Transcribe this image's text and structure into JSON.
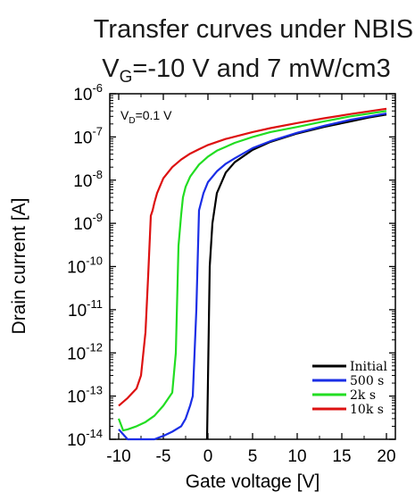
{
  "chart_data": {
    "type": "line",
    "title": {
      "line1": "Transfer curves under NBIS,",
      "line2_parts": [
        "V",
        "G",
        "=-10 V and 7 mW/cm3"
      ]
    },
    "xlabel": "Gate voltage [V]",
    "ylabel": "Drain current [A]",
    "xlim": [
      -11,
      21
    ],
    "ylim_log10": [
      -14,
      -6
    ],
    "y_scale": "log",
    "x_ticks": [
      -10,
      -5,
      0,
      5,
      10,
      15,
      20
    ],
    "y_tick_exponents": [
      -14,
      -13,
      -12,
      -11,
      -10,
      -9,
      -8,
      -7,
      -6
    ],
    "y_tick_base": "10",
    "annotation": {
      "parts": [
        "V",
        "D",
        "=0.1 V"
      ],
      "placement": "top-left"
    },
    "legend_placement": "bottom-right",
    "series": [
      {
        "name": "Initial",
        "color": "#000000",
        "x": [
          -0.1,
          0.05,
          0.2,
          0.5,
          1,
          2,
          3,
          5,
          7,
          10,
          13,
          16,
          18,
          20
        ],
        "y": [
          1e-14,
          1e-12,
          1e-10,
          1e-09,
          5e-09,
          1.5e-08,
          2.6e-08,
          5e-08,
          7.7e-08,
          1.2e-07,
          1.7e-07,
          2.3e-07,
          2.8e-07,
          3.3e-07
        ]
      },
      {
        "name": "500 s",
        "color": "#1a2ee6",
        "x": [
          -10,
          -9,
          -8,
          -7,
          -6,
          -5,
          -4,
          -3,
          -2.5,
          -2,
          -1.7,
          -1.3,
          -1,
          -0.5,
          0,
          1,
          2,
          3,
          5,
          7,
          10,
          13,
          16,
          20
        ],
        "y": [
          1.7e-14,
          8e-15,
          8e-15,
          9e-15,
          1e-14,
          1.2e-14,
          1.5e-14,
          2e-14,
          3e-14,
          6e-14,
          1e-13,
          1e-11,
          2e-09,
          5e-09,
          9e-09,
          1.6e-08,
          2.4e-08,
          3.2e-08,
          5.5e-08,
          8e-08,
          1.25e-07,
          1.8e-07,
          2.5e-07,
          3.5e-07
        ]
      },
      {
        "name": "2k s",
        "color": "#22dd22",
        "x": [
          -10,
          -9.5,
          -9,
          -8,
          -7,
          -6,
          -5,
          -4,
          -3.6,
          -3.3,
          -3,
          -2.8,
          -2.5,
          -2,
          -1,
          0,
          1,
          3,
          5,
          7,
          10,
          13,
          16,
          20
        ],
        "y": [
          3e-14,
          1.6e-14,
          1.7e-14,
          2e-14,
          2.5e-14,
          3.5e-14,
          6e-14,
          1.2e-13,
          1e-12,
          3e-10,
          1.6e-09,
          4e-09,
          7e-09,
          1.2e-08,
          2.3e-08,
          3.5e-08,
          4.8e-08,
          7.3e-08,
          1e-07,
          1.3e-07,
          1.7e-07,
          2.3e-07,
          3e-07,
          4e-07
        ]
      },
      {
        "name": "10k s",
        "color": "#dd1111",
        "x": [
          -10,
          -9,
          -8,
          -7.5,
          -7,
          -6.7,
          -6.4,
          -6.2,
          -6,
          -5.7,
          -5,
          -4,
          -3,
          -2,
          -1,
          0,
          2,
          5,
          7,
          10,
          13,
          16,
          20
        ],
        "y": [
          6e-14,
          9e-14,
          1.5e-13,
          3e-13,
          3e-12,
          6e-11,
          1.5e-09,
          2e-09,
          3e-09,
          5e-09,
          1.1e-08,
          2e-08,
          3e-08,
          4.1e-08,
          5.2e-08,
          6.5e-08,
          9e-08,
          1.3e-07,
          1.6e-07,
          2.1e-07,
          2.7e-07,
          3.4e-07,
          4.5e-07
        ]
      }
    ]
  }
}
